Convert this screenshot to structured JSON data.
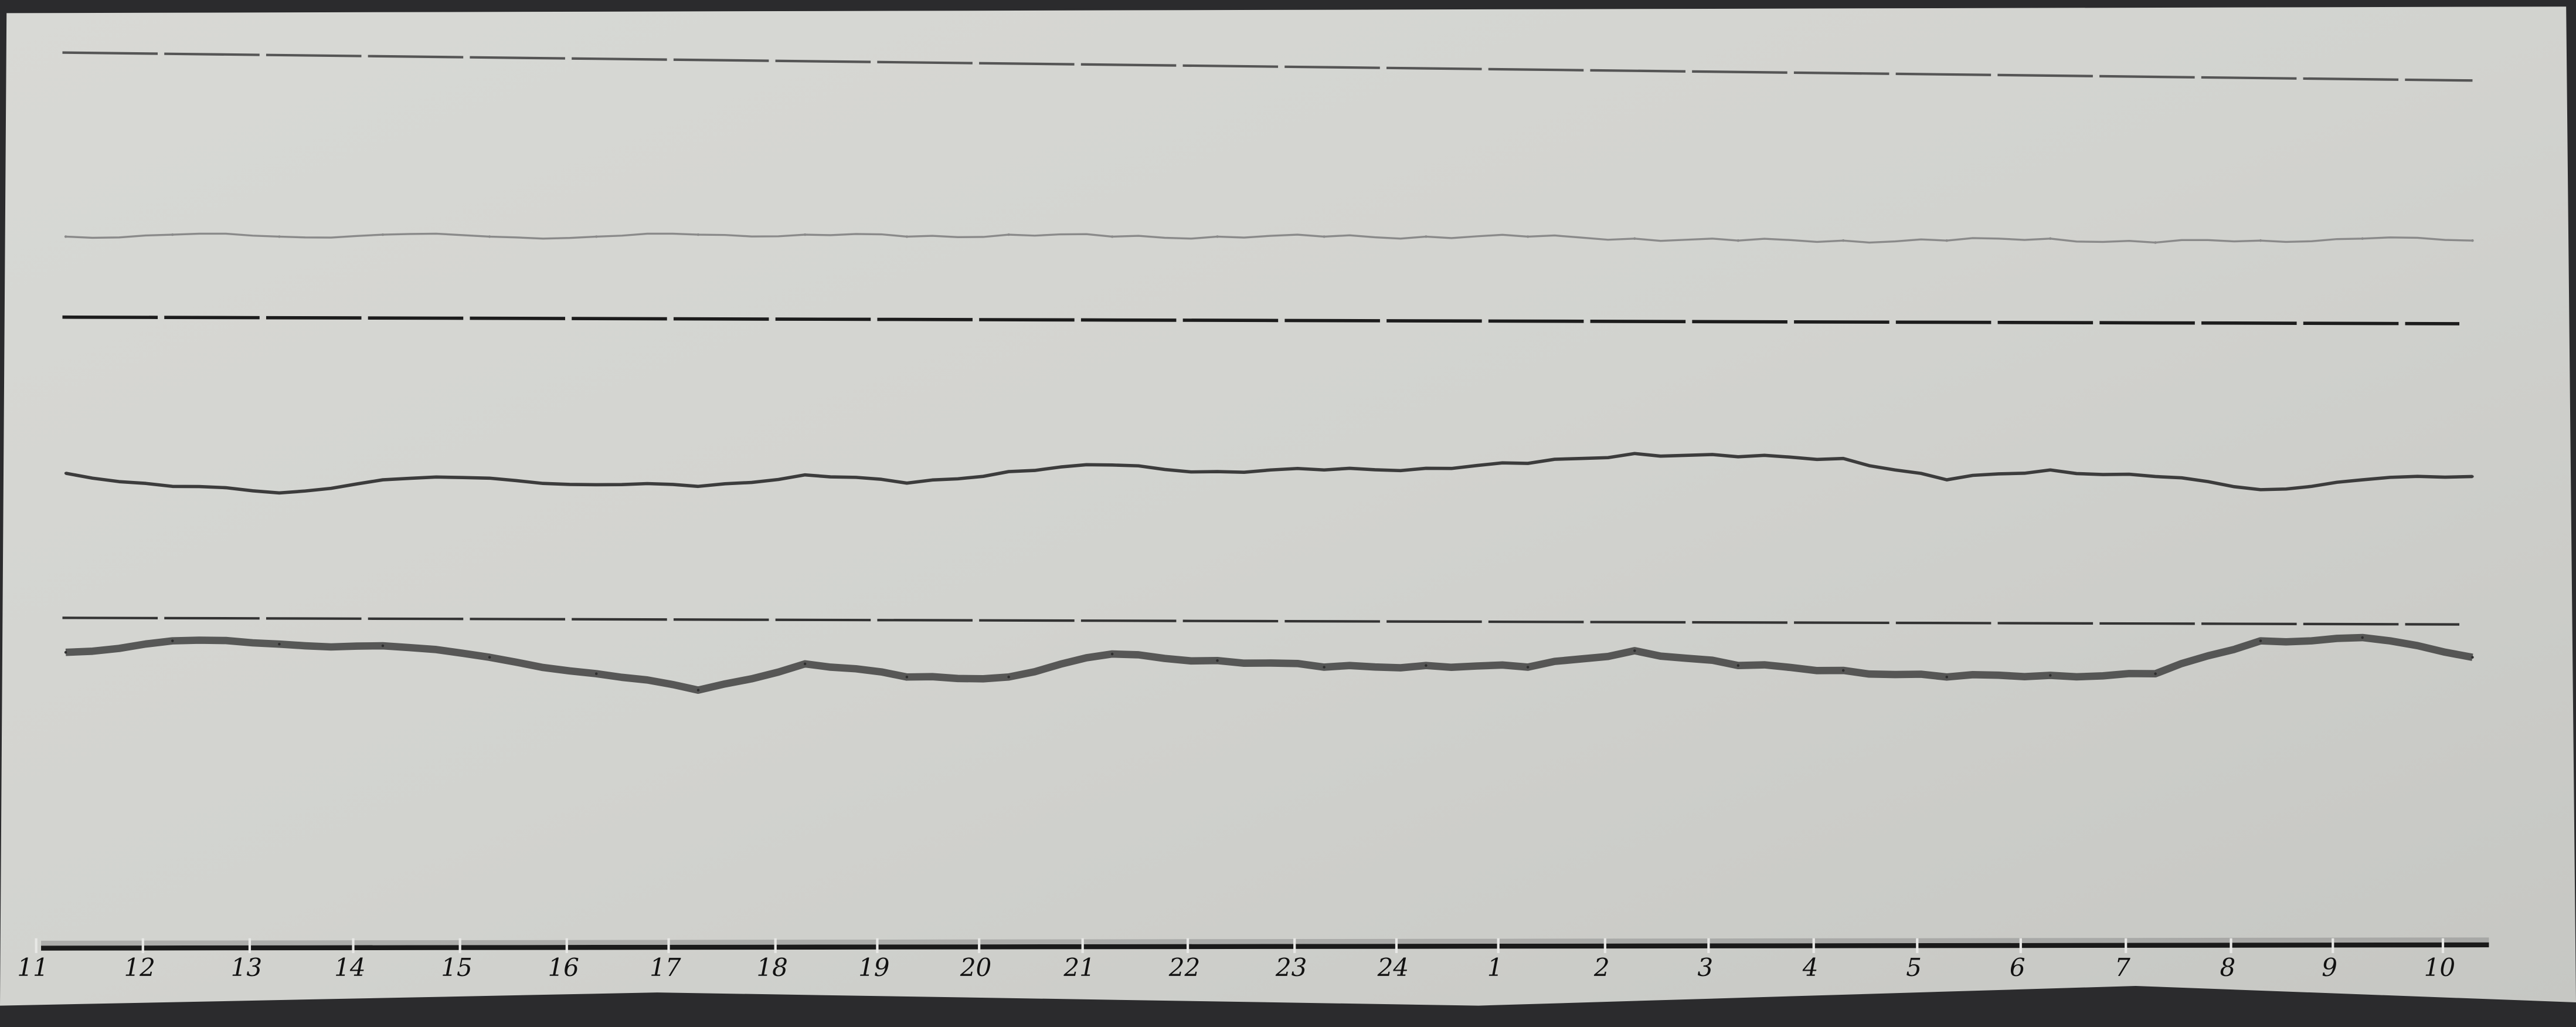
{
  "chart_data": {
    "type": "line",
    "title": "",
    "xlabel": "",
    "ylabel": "",
    "grid": false,
    "legend": "none",
    "x_tick_labels": [
      "11",
      "12",
      "13",
      "14",
      "15",
      "16",
      "17",
      "18",
      "19",
      "20",
      "21",
      "22",
      "23",
      "24",
      "1",
      "2",
      "3",
      "4",
      "5",
      "6",
      "7",
      "8",
      "9",
      "10"
    ],
    "series": [
      {
        "key": "upper",
        "color": "#8a8a8a",
        "values": [
          5,
          6,
          5,
          6,
          5,
          5,
          6,
          6,
          5,
          6,
          5,
          5,
          5,
          5,
          5,
          4,
          3,
          3,
          3,
          4,
          2,
          3,
          4,
          3
        ]
      },
      {
        "key": "middle",
        "color": "#3c3c3c",
        "values": [
          12,
          4,
          0,
          8,
          9,
          5,
          4,
          11,
          6,
          13,
          17,
          13,
          14,
          15,
          18,
          24,
          22,
          21,
          8,
          14,
          10,
          2,
          8,
          10
        ]
      },
      {
        "key": "lower",
        "color": "#2e2e2e",
        "values": [
          23,
          30,
          28,
          27,
          20,
          10,
          0,
          16,
          8,
          8,
          22,
          18,
          14,
          15,
          14,
          24,
          15,
          12,
          8,
          9,
          10,
          30,
          32,
          20
        ]
      }
    ]
  },
  "colors": {
    "paper": "#d3d4d0",
    "baseline": "#1c1c1c"
  }
}
